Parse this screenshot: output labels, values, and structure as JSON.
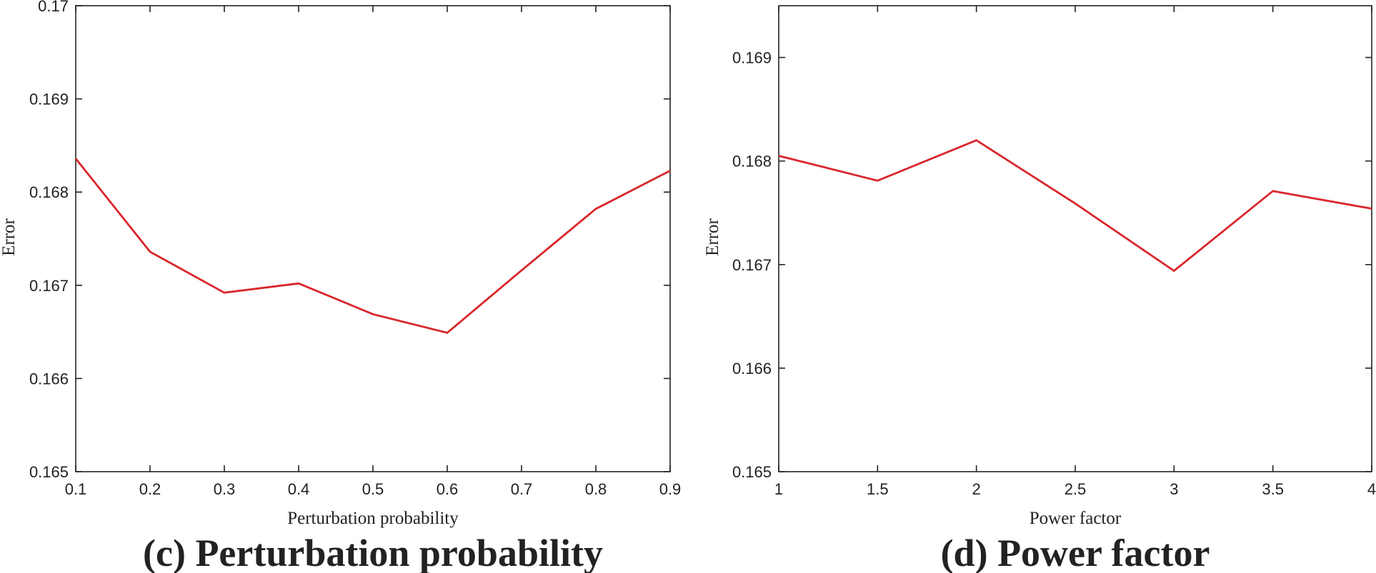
{
  "chart_data": [
    {
      "type": "line",
      "caption": "(c) Perturbation probability",
      "xlabel": "Perturbation probability",
      "ylabel": "Error",
      "xlim": [
        0.1,
        0.9
      ],
      "ylim": [
        0.165,
        0.17
      ],
      "xticks": [
        "0.1",
        "0.2",
        "0.3",
        "0.4",
        "0.5",
        "0.6",
        "0.7",
        "0.8",
        "0.9"
      ],
      "yticks": [
        "0.165",
        "0.166",
        "0.167",
        "0.168",
        "0.169",
        "0.17"
      ],
      "series": [
        {
          "color": "#d9262b",
          "x": [
            0.1,
            0.2,
            0.3,
            0.4,
            0.5,
            0.6,
            0.7,
            0.8,
            0.9
          ],
          "y": [
            0.16836,
            0.16736,
            0.16692,
            0.16702,
            0.16669,
            0.16649,
            0.16716,
            0.16782,
            0.16823
          ]
        }
      ],
      "grid": false
    },
    {
      "type": "line",
      "caption": "(d) Power factor",
      "xlabel": "Power factor",
      "ylabel": "Error",
      "xlim": [
        1,
        4
      ],
      "ylim": [
        0.165,
        0.1695
      ],
      "xticks": [
        "1",
        "1.5",
        "2",
        "2.5",
        "3",
        "3.5",
        "4"
      ],
      "yticks": [
        "0.165",
        "0.166",
        "0.167",
        "0.168",
        "0.169"
      ],
      "series": [
        {
          "color": "#d9262b",
          "x": [
            1,
            1.5,
            2,
            2.5,
            3,
            3.5,
            4
          ],
          "y": [
            0.16805,
            0.16781,
            0.1682,
            0.16759,
            0.16694,
            0.16771,
            0.16754
          ]
        }
      ],
      "grid": false
    }
  ]
}
